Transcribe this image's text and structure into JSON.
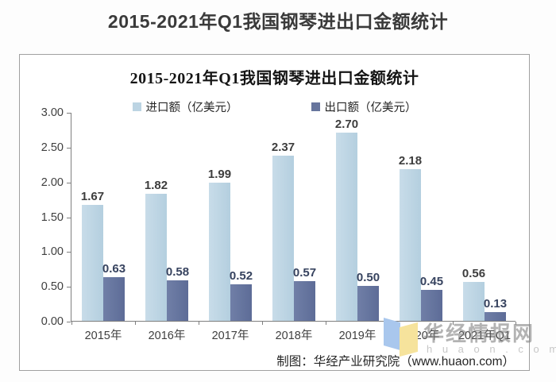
{
  "page": {
    "title": "2015-2021年Q1我国钢琴进出口金额统计"
  },
  "chart_data": {
    "type": "bar",
    "title": "2015-2021年Q1我国钢琴进出口金额统计",
    "categories": [
      "2015年",
      "2016年",
      "2017年",
      "2018年",
      "2019年",
      "2020年",
      "2021年Q1"
    ],
    "series": [
      {
        "name": "进口额（亿美元）",
        "color_start": "#c8dce9",
        "color_end": "#b4cfdf",
        "color": "#bcd4e3",
        "values": [
          1.67,
          1.82,
          1.99,
          2.37,
          2.7,
          2.18,
          0.56
        ]
      },
      {
        "name": "出口额（亿美元）",
        "color_start": "#707fa7",
        "color_end": "#5d6c97",
        "color": "#67759d",
        "values": [
          0.63,
          0.58,
          0.52,
          0.57,
          0.5,
          0.45,
          0.13
        ]
      }
    ],
    "xlabel": "",
    "ylabel": "",
    "ylim": [
      0,
      3.0
    ],
    "ytick_step": 0.5,
    "ytick_labels": [
      "0.00",
      "0.50",
      "1.00",
      "1.50",
      "2.00",
      "2.50",
      "3.00"
    ],
    "value_label_decimals": 2,
    "grid": false,
    "legend_position": "top"
  },
  "footer": {
    "credit": "制图：华经产业研究院（www.huaon.com）"
  },
  "watermark": {
    "brand": "华经情报网",
    "domain": "h u a o n . c o m"
  }
}
